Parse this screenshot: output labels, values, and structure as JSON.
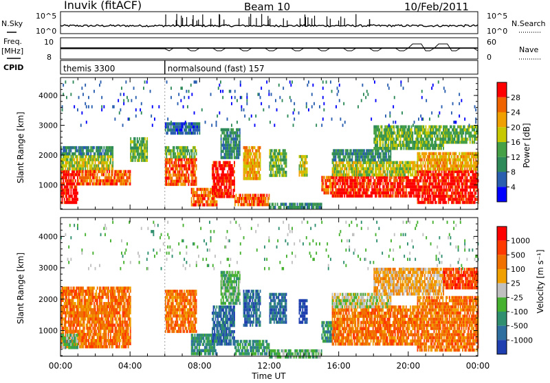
{
  "header": {
    "station": "Inuvik (fitACF)",
    "beam": "Beam 10",
    "date": "10/Feb/2011"
  },
  "top_panels": {
    "nsky_label": "N.Sky",
    "nsearch_label": "N.Search",
    "freq_label": "Freq.",
    "freq_unit": "[MHz]",
    "nave_label": "Nave",
    "cpid_label": "CPID",
    "nsky_ticks": [
      "10^5",
      "10^0"
    ],
    "nsearch_ticks": [
      "10^5",
      "10^0"
    ],
    "freq_ticks": [
      "10",
      "8"
    ],
    "nave_ticks": [
      "60",
      "0"
    ],
    "cpid_segments": [
      {
        "name": "themis 3300",
        "start_hour": 0
      },
      {
        "name": "normalsound (fast) 157",
        "start_hour": 6
      }
    ]
  },
  "colors": {
    "power": [
      "#0000ff",
      "#2a5fb0",
      "#2f8a5a",
      "#46a046",
      "#c8c800",
      "#f0a000",
      "#f06400",
      "#ff0000"
    ],
    "velocity": [
      "#1f3fb0",
      "#2f6f9f",
      "#2f8f6f",
      "#46b030",
      "#c0c0c0",
      "#f0a000",
      "#f07000",
      "#ff3a00",
      "#ff0000"
    ]
  },
  "chart_data": [
    {
      "type": "heatmap",
      "name": "power",
      "ylabel": "Slant Range [km]",
      "xlabel": "Time UT",
      "x_ticks": [
        "00:00",
        "04:00",
        "08:00",
        "12:00",
        "16:00",
        "20:00",
        "00:00"
      ],
      "xlim_hours": [
        0,
        24
      ],
      "y_ticks": [
        1000,
        2000,
        3000,
        4000
      ],
      "ylim": [
        180,
        4600
      ],
      "colorbar_label": "Power [dB]",
      "colorbar_ticks": [
        "28",
        "24",
        "20",
        "16",
        "12",
        "8",
        "4"
      ],
      "echo_regions": [
        {
          "t0": 0.0,
          "t1": 1.0,
          "r0": 450,
          "r1": 1500,
          "level": 7
        },
        {
          "t0": 0.0,
          "t1": 3.0,
          "r0": 1500,
          "r1": 2000,
          "level": 4
        },
        {
          "t0": 0.0,
          "t1": 3.0,
          "r0": 2000,
          "r1": 2300,
          "level": 2
        },
        {
          "t0": 1.0,
          "t1": 4.0,
          "r0": 1000,
          "r1": 1500,
          "level": 6
        },
        {
          "t0": 4.0,
          "t1": 5.0,
          "r0": 1800,
          "r1": 2600,
          "level": 3
        },
        {
          "t0": 6.0,
          "t1": 7.8,
          "r0": 1000,
          "r1": 1900,
          "level": 6
        },
        {
          "t0": 6.0,
          "t1": 7.8,
          "r0": 1900,
          "r1": 2300,
          "level": 3
        },
        {
          "t0": 6.0,
          "t1": 8.0,
          "r0": 2700,
          "r1": 3100,
          "level": 1
        },
        {
          "t0": 7.5,
          "t1": 9.0,
          "r0": 300,
          "r1": 900,
          "level": 6
        },
        {
          "t0": 8.7,
          "t1": 10.0,
          "r0": 600,
          "r1": 1800,
          "level": 7
        },
        {
          "t0": 9.2,
          "t1": 10.3,
          "r0": 1900,
          "r1": 2900,
          "level": 2
        },
        {
          "t0": 10.0,
          "t1": 12.0,
          "r0": 300,
          "r1": 700,
          "level": 6
        },
        {
          "t0": 10.5,
          "t1": 11.5,
          "r0": 1200,
          "r1": 2300,
          "level": 5
        },
        {
          "t0": 12.0,
          "t1": 13.0,
          "r0": 1300,
          "r1": 2200,
          "level": 3
        },
        {
          "t0": 12.0,
          "t1": 15.0,
          "r0": 200,
          "r1": 400,
          "level": 2
        },
        {
          "t0": 13.7,
          "t1": 14.2,
          "r0": 1300,
          "r1": 2000,
          "level": 4
        },
        {
          "t0": 15.0,
          "t1": 15.7,
          "r0": 700,
          "r1": 1300,
          "level": 6
        },
        {
          "t0": 15.6,
          "t1": 20.5,
          "r0": 600,
          "r1": 1300,
          "level": 7
        },
        {
          "t0": 15.6,
          "t1": 20.5,
          "r0": 1300,
          "r1": 1800,
          "level": 4
        },
        {
          "t0": 15.6,
          "t1": 19.0,
          "r0": 1800,
          "r1": 2200,
          "level": 2
        },
        {
          "t0": 18.0,
          "t1": 22.0,
          "r0": 2200,
          "r1": 3000,
          "level": 3
        },
        {
          "t0": 20.5,
          "t1": 24.0,
          "r0": 400,
          "r1": 1500,
          "level": 7
        },
        {
          "t0": 20.5,
          "t1": 24.0,
          "r0": 1500,
          "r1": 2100,
          "level": 5
        },
        {
          "t0": 22.0,
          "t1": 24.0,
          "r0": 2400,
          "r1": 3000,
          "level": 3
        },
        {
          "t0": 0.0,
          "t1": 24.0,
          "r0": 3000,
          "r1": 4500,
          "level": 1,
          "sparse": true
        }
      ]
    },
    {
      "type": "heatmap",
      "name": "velocity",
      "ylabel": "Slant Range [km]",
      "xlabel": "Time UT",
      "x_ticks": [
        "00:00",
        "04:00",
        "08:00",
        "12:00",
        "16:00",
        "20:00",
        "00:00"
      ],
      "xlim_hours": [
        0,
        24
      ],
      "y_ticks": [
        1000,
        2000,
        3000,
        4000
      ],
      "ylim": [
        180,
        4600
      ],
      "colorbar_label": "Velocity [m s⁻¹]",
      "colorbar_ticks": [
        "1000",
        "500",
        "100",
        "25",
        "-25",
        "-100",
        "-500",
        "-1000"
      ],
      "echo_regions": [
        {
          "t0": 0.0,
          "t1": 4.0,
          "r0": 450,
          "r1": 2400,
          "level": 6
        },
        {
          "t0": 0.0,
          "t1": 1.0,
          "r0": 500,
          "r1": 900,
          "level": 3
        },
        {
          "t0": 6.0,
          "t1": 7.8,
          "r0": 1000,
          "r1": 2300,
          "level": 6
        },
        {
          "t0": 7.5,
          "t1": 9.0,
          "r0": 300,
          "r1": 900,
          "level": 2
        },
        {
          "t0": 8.7,
          "t1": 10.0,
          "r0": 600,
          "r1": 1800,
          "level": 1
        },
        {
          "t0": 9.2,
          "t1": 10.3,
          "r0": 1900,
          "r1": 2900,
          "level": 3
        },
        {
          "t0": 10.0,
          "t1": 12.0,
          "r0": 300,
          "r1": 700,
          "level": 2
        },
        {
          "t0": 10.5,
          "t1": 11.5,
          "r0": 1200,
          "r1": 2300,
          "level": 1
        },
        {
          "t0": 12.0,
          "t1": 13.0,
          "r0": 1300,
          "r1": 2200,
          "level": 1
        },
        {
          "t0": 12.0,
          "t1": 15.0,
          "r0": 200,
          "r1": 400,
          "level": 3
        },
        {
          "t0": 13.7,
          "t1": 14.2,
          "r0": 1300,
          "r1": 2000,
          "level": 0
        },
        {
          "t0": 15.0,
          "t1": 15.7,
          "r0": 700,
          "r1": 1300,
          "level": 2
        },
        {
          "t0": 15.6,
          "t1": 20.5,
          "r0": 600,
          "r1": 1800,
          "level": 6
        },
        {
          "t0": 15.6,
          "t1": 19.0,
          "r0": 1800,
          "r1": 2200,
          "level": 4
        },
        {
          "t0": 18.0,
          "t1": 22.0,
          "r0": 2200,
          "r1": 3000,
          "level": 5
        },
        {
          "t0": 20.5,
          "t1": 24.0,
          "r0": 400,
          "r1": 2100,
          "level": 6
        },
        {
          "t0": 22.0,
          "t1": 24.0,
          "r0": 2400,
          "r1": 3000,
          "level": 7
        },
        {
          "t0": 0.0,
          "t1": 24.0,
          "r0": 3000,
          "r1": 4500,
          "level": 3,
          "sparse": true
        }
      ]
    }
  ]
}
